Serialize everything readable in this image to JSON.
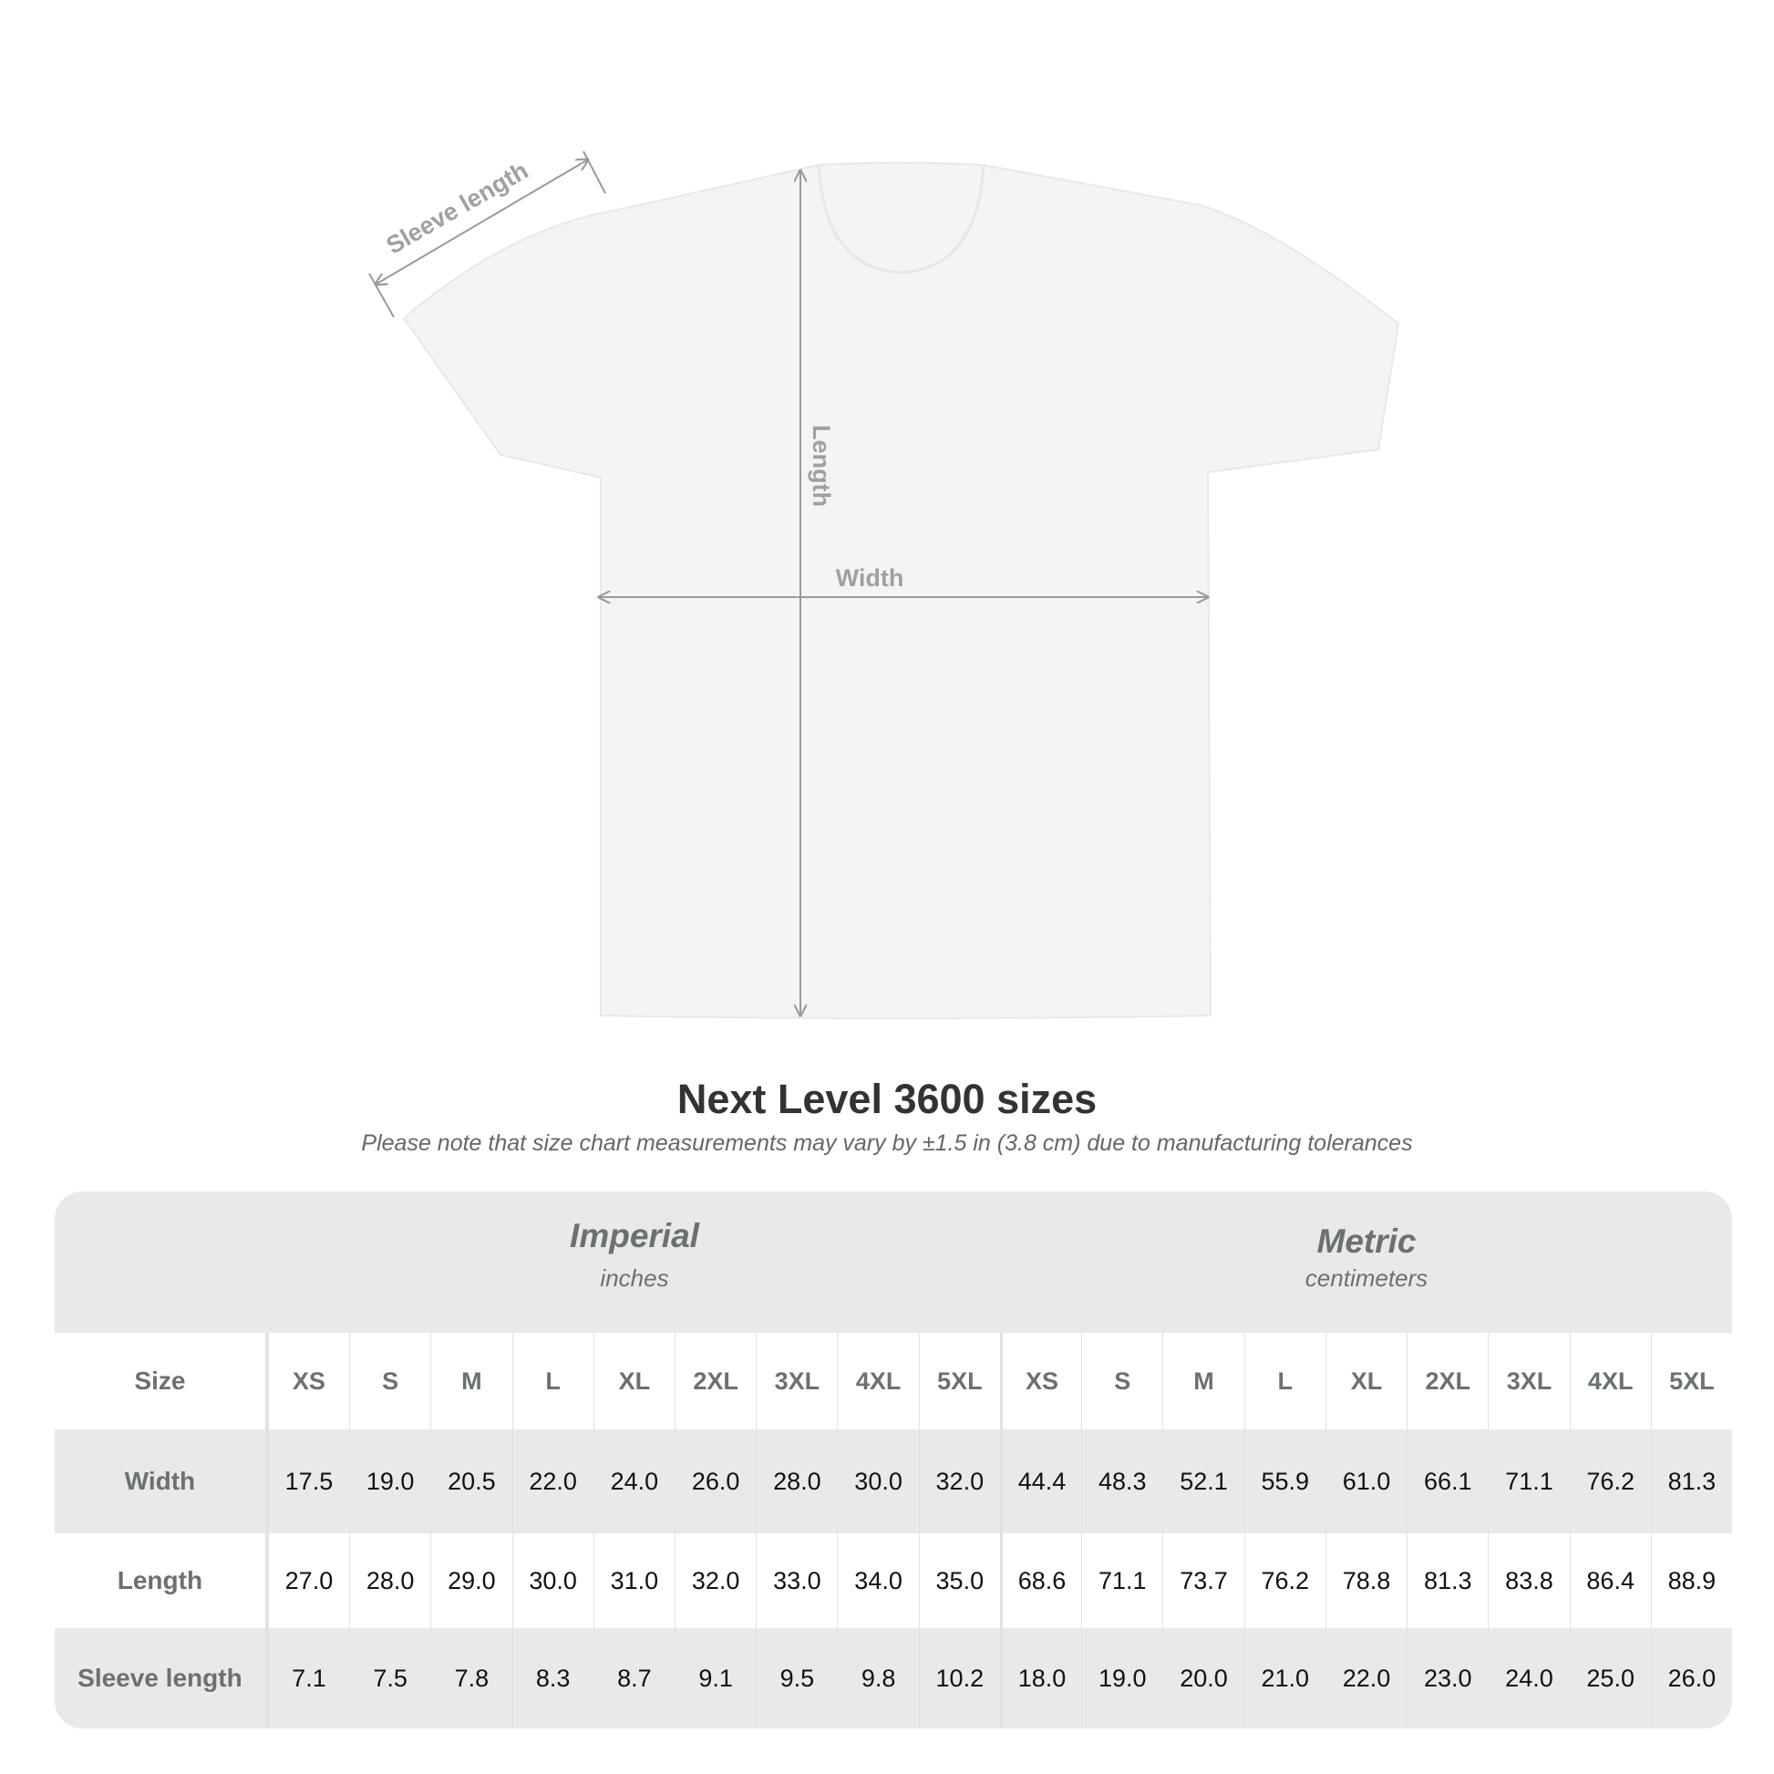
{
  "diagram": {
    "labels": {
      "sleeve": "Sleeve length",
      "length": "Length",
      "width": "Width"
    },
    "shirt_color": "#f4f4f4",
    "arrow_color": "#9a9a9a"
  },
  "title": "Next Level 3600 sizes",
  "subtitle": "Please note that size chart measurements may vary by ±1.5 in (3.8 cm) due to manufacturing tolerances",
  "table": {
    "groups": [
      {
        "name": "Imperial",
        "unit": "inches"
      },
      {
        "name": "Metric",
        "unit": "centimeters"
      }
    ],
    "size_label": "Size",
    "sizes": [
      "XS",
      "S",
      "M",
      "L",
      "XL",
      "2XL",
      "3XL",
      "4XL",
      "5XL"
    ],
    "rows": [
      {
        "label": "Width",
        "imperial": [
          "17.5",
          "19.0",
          "20.5",
          "22.0",
          "24.0",
          "26.0",
          "28.0",
          "30.0",
          "32.0"
        ],
        "metric": [
          "44.4",
          "48.3",
          "52.1",
          "55.9",
          "61.0",
          "66.1",
          "71.1",
          "76.2",
          "81.3"
        ]
      },
      {
        "label": "Length",
        "imperial": [
          "27.0",
          "28.0",
          "29.0",
          "30.0",
          "31.0",
          "32.0",
          "33.0",
          "34.0",
          "35.0"
        ],
        "metric": [
          "68.6",
          "71.1",
          "73.7",
          "76.2",
          "78.8",
          "81.3",
          "83.8",
          "86.4",
          "88.9"
        ]
      },
      {
        "label": "Sleeve length",
        "imperial": [
          "7.1",
          "7.5",
          "7.8",
          "8.3",
          "8.7",
          "9.1",
          "9.5",
          "9.8",
          "10.2"
        ],
        "metric": [
          "18.0",
          "19.0",
          "20.0",
          "21.0",
          "22.0",
          "23.0",
          "24.0",
          "25.0",
          "26.0"
        ]
      }
    ]
  }
}
